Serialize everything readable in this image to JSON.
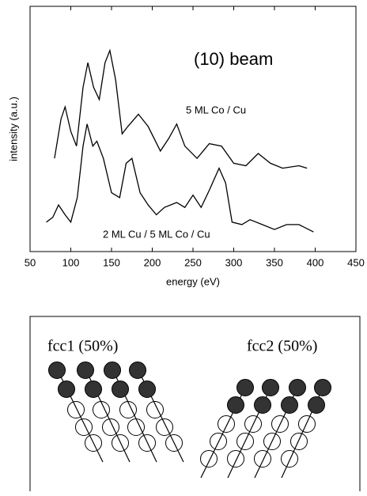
{
  "chart_data": {
    "type": "line",
    "annotations": [
      "(10) beam"
    ],
    "xlabel": "energy (eV)",
    "ylabel": "intensity (a.u.)",
    "xlim": [
      50,
      450
    ],
    "xticks": [
      50,
      100,
      150,
      200,
      250,
      300,
      350,
      400,
      450
    ],
    "ylim": [
      0,
      100
    ],
    "series": [
      {
        "name": "5 ML Co / Cu",
        "color": "#000000",
        "x": [
          80,
          88,
          93,
          100,
          107,
          115,
          121,
          128,
          135,
          142,
          148,
          155,
          163,
          170,
          183,
          195,
          210,
          220,
          230,
          240,
          255,
          270,
          285,
          300,
          315,
          330,
          345,
          360,
          380,
          390
        ],
        "values": [
          38,
          54,
          59,
          49,
          43,
          67,
          77,
          67,
          62,
          77,
          82,
          70,
          48,
          51,
          56,
          51,
          41,
          46,
          52,
          43,
          38,
          44,
          43,
          36,
          35,
          40,
          36,
          34,
          35,
          34
        ]
      },
      {
        "name": "2 ML Cu / 5 ML Co / Cu",
        "color": "#000000",
        "x": [
          70,
          78,
          85,
          93,
          100,
          108,
          115,
          120,
          127,
          132,
          140,
          150,
          160,
          168,
          175,
          185,
          195,
          205,
          215,
          230,
          240,
          250,
          260,
          270,
          282,
          290,
          298,
          310,
          320,
          335,
          350,
          365,
          380,
          398
        ],
        "values": [
          12,
          14,
          19,
          15,
          12,
          22,
          43,
          52,
          43,
          45,
          38,
          24,
          22,
          36,
          38,
          24,
          19,
          15,
          18,
          20,
          18,
          23,
          18,
          25,
          34,
          28,
          12,
          11,
          13,
          11,
          9,
          11,
          11,
          8
        ]
      }
    ]
  },
  "diagram": {
    "labels": [
      "fcc1 (50%)",
      "fcc2 (50%)"
    ]
  }
}
